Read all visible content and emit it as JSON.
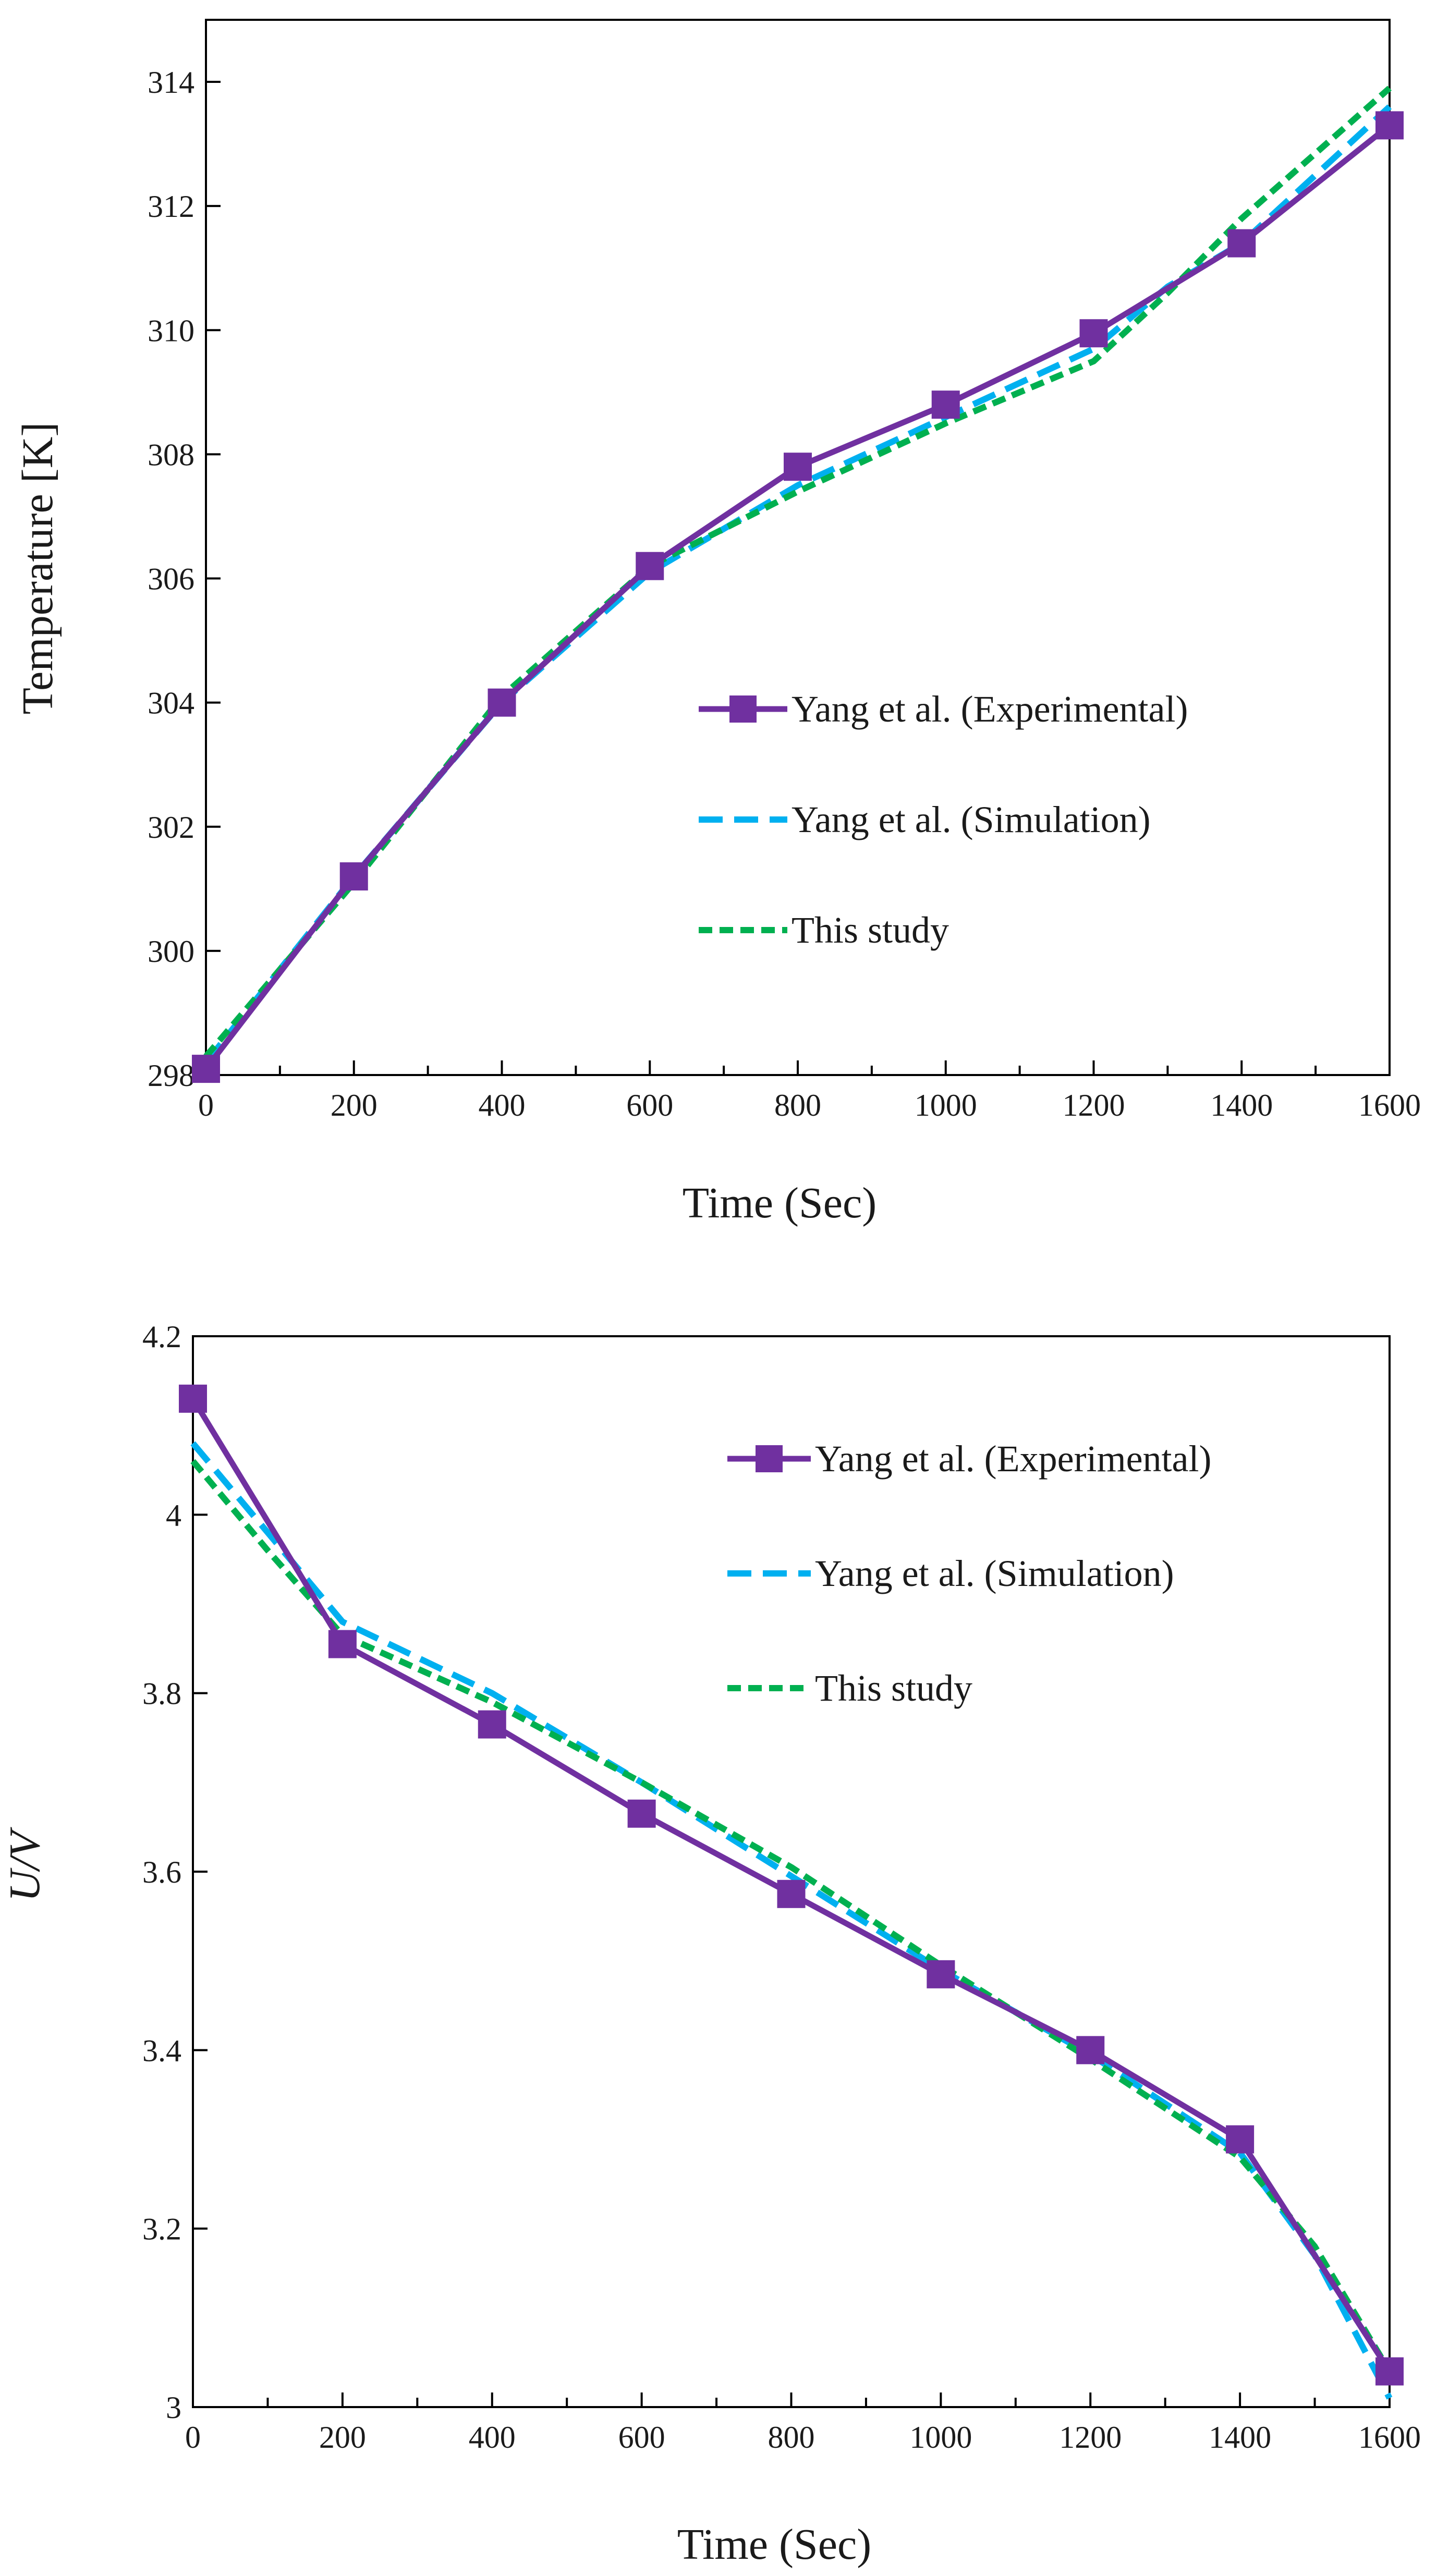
{
  "chart_data": [
    {
      "type": "line",
      "title": "",
      "xlabel": "Time (Sec)",
      "ylabel": "Temperature [K]",
      "xlim": [
        0,
        1600
      ],
      "ylim": [
        298,
        315
      ],
      "x_ticks": [
        0,
        200,
        400,
        600,
        800,
        1000,
        1200,
        1400,
        1600
      ],
      "x_tick_labels": [
        "0",
        "200",
        "400",
        "600",
        "800",
        "1000",
        "1200",
        "1400",
        "1600"
      ],
      "y_ticks": [
        298,
        300,
        302,
        304,
        306,
        308,
        310,
        312,
        314
      ],
      "y_tick_labels": [
        "298",
        "300",
        "302",
        "304",
        "306",
        "308",
        "310",
        "312",
        "314"
      ],
      "legend_position": "center-right",
      "series": [
        {
          "name": "Yang et al.  (Experimental)",
          "color": "#7030a0",
          "style": "solid-square-markers",
          "x": [
            0,
            200,
            400,
            600,
            800,
            1000,
            1200,
            1400,
            1600
          ],
          "values": [
            298.1,
            301.2,
            304.0,
            306.2,
            307.8,
            308.8,
            309.95,
            311.4,
            313.3
          ]
        },
        {
          "name": "Yang et al. (Simulation)",
          "color": "#00b0f0",
          "style": "long-dash",
          "x": [
            0,
            200,
            400,
            600,
            800,
            1000,
            1200,
            1300,
            1400,
            1600
          ],
          "values": [
            298.2,
            301.2,
            304.0,
            306.1,
            307.5,
            308.6,
            309.7,
            310.7,
            311.4,
            313.6
          ]
        },
        {
          "name": "This study",
          "color": "#00b050",
          "style": "short-dash",
          "x": [
            0,
            200,
            400,
            600,
            800,
            1000,
            1200,
            1300,
            1400,
            1600
          ],
          "values": [
            298.3,
            301.1,
            304.1,
            306.2,
            307.4,
            308.5,
            309.5,
            310.6,
            311.8,
            313.9
          ]
        }
      ]
    },
    {
      "type": "line",
      "title": "",
      "xlabel": "Time (Sec)",
      "ylabel": "U/V",
      "xlim": [
        0,
        1600
      ],
      "ylim": [
        3.0,
        4.2
      ],
      "x_ticks": [
        0,
        200,
        400,
        600,
        800,
        1000,
        1200,
        1400,
        1600
      ],
      "x_tick_labels": [
        "0",
        "200",
        "400",
        "600",
        "800",
        "1000",
        "1200",
        "1400",
        "1600"
      ],
      "y_ticks": [
        3.0,
        3.2,
        3.4,
        3.6,
        3.8,
        4.0,
        4.2
      ],
      "y_tick_labels": [
        "3",
        "3.2",
        "3.4",
        "3.6",
        "3.8",
        "4",
        "4.2"
      ],
      "legend_position": "top-right",
      "series": [
        {
          "name": "Yang et al.  (Experimental)",
          "color": "#7030a0",
          "style": "solid-square-markers",
          "x": [
            0,
            200,
            400,
            600,
            800,
            1000,
            1200,
            1400,
            1600
          ],
          "values": [
            4.13,
            3.855,
            3.765,
            3.665,
            3.575,
            3.485,
            3.4,
            3.3,
            3.04
          ]
        },
        {
          "name": "Yang et al. (Simulation)",
          "color": "#00b0f0",
          "style": "long-dash",
          "x": [
            0,
            100,
            200,
            400,
            600,
            800,
            1000,
            1200,
            1400,
            1500,
            1600
          ],
          "values": [
            4.08,
            3.98,
            3.88,
            3.8,
            3.7,
            3.595,
            3.49,
            3.395,
            3.285,
            3.17,
            3.01
          ]
        },
        {
          "name": "This study",
          "color": "#00b050",
          "style": "short-dash",
          "x": [
            0,
            100,
            200,
            400,
            600,
            800,
            1000,
            1200,
            1400,
            1500,
            1600
          ],
          "values": [
            4.06,
            3.96,
            3.865,
            3.79,
            3.7,
            3.605,
            3.495,
            3.39,
            3.28,
            3.18,
            3.04
          ]
        }
      ]
    }
  ]
}
